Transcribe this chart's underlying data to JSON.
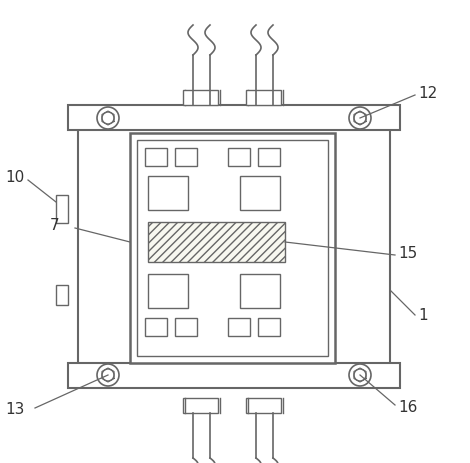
{
  "bg_color": "#ffffff",
  "lc": "#666666",
  "lc_dark": "#444444",
  "lw": 1.0,
  "fig_w": 4.7,
  "fig_h": 4.63,
  "dpi": 100
}
